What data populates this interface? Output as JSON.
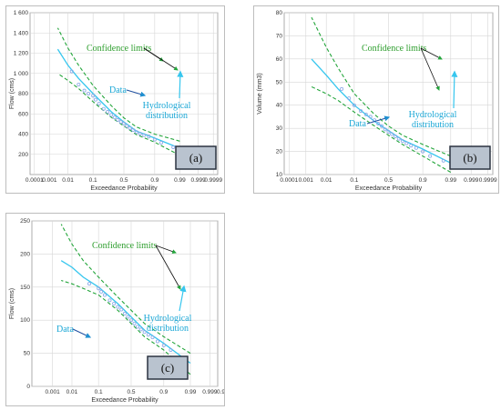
{
  "colors": {
    "confidence": "#22a53a",
    "distribution": "#36c6ee",
    "data_points": "#8aa6e6",
    "grid": "#d6d6d6",
    "label_box": "#b9c3cf"
  },
  "chart_data": [
    {
      "type": "line",
      "panel_label": "(a)",
      "xlabel": "Exceedance Probability",
      "ylabel": "Flow (cms)",
      "x_scale": "normal-probability",
      "x_ticks": [
        "0.9999",
        "0.999",
        "0.99",
        "0.9",
        "0.5",
        "0.1",
        "0.01",
        "0.001",
        "0.0001"
      ],
      "y_ticks": [
        "200",
        "400",
        "600",
        "800",
        "1 000",
        "1 200",
        "1 400",
        "1 600"
      ],
      "ylim": [
        0,
        1600
      ],
      "grid": true,
      "series": [
        {
          "x": [
            0.99,
            0.9,
            0.7,
            0.5,
            0.3,
            0.1,
            0.03,
            0.01,
            0.003
          ],
          "values": [
            260,
            360,
            430,
            520,
            620,
            800,
            950,
            1080,
            1240
          ]
        },
        {
          "x": [
            0.99,
            0.9,
            0.7,
            0.5,
            0.3,
            0.1,
            0.03,
            0.01,
            0.003
          ],
          "values": [
            330,
            400,
            470,
            560,
            680,
            880,
            1080,
            1250,
            1450
          ]
        },
        {
          "x": [
            0.99,
            0.9,
            0.7,
            0.5,
            0.3,
            0.1,
            0.03,
            0.01,
            0.003
          ],
          "values": [
            190,
            320,
            395,
            480,
            565,
            720,
            850,
            930,
            1000
          ]
        },
        {
          "x": [
            0.98,
            0.94,
            0.9,
            0.85,
            0.8,
            0.75,
            0.7,
            0.65,
            0.6,
            0.55,
            0.5,
            0.45,
            0.4,
            0.35,
            0.3,
            0.25,
            0.2,
            0.15,
            0.12,
            0.1,
            0.07,
            0.05,
            0.03,
            0.015
          ],
          "values": [
            270,
            315,
            345,
            375,
            390,
            405,
            420,
            440,
            460,
            480,
            505,
            520,
            540,
            565,
            590,
            620,
            650,
            700,
            740,
            780,
            800,
            830,
            890,
            1020
          ]
        }
      ],
      "annotations": {
        "confidence": "Confidence limits",
        "data": "Data",
        "hydro_1": "Hydrological",
        "hydro_2": "distribution"
      }
    },
    {
      "type": "line",
      "panel_label": "(b)",
      "xlabel": "Exceedance Probability",
      "ylabel": "Volume (mm3)",
      "x_scale": "normal-probability",
      "x_ticks": [
        "0.9999",
        "0.999",
        "0.99",
        "0.9",
        "0.5",
        "0.1",
        "0.01",
        "0.001",
        "0.0001"
      ],
      "y_ticks": [
        "10",
        "20",
        "30",
        "40",
        "50",
        "60",
        "70",
        "80"
      ],
      "ylim": [
        10,
        80
      ],
      "grid": true,
      "series": [
        {
          "x": [
            0.99,
            0.9,
            0.7,
            0.5,
            0.3,
            0.1,
            0.03,
            0.01,
            0.002
          ],
          "values": [
            15,
            21,
            25,
            29,
            33,
            40,
            47,
            53,
            60
          ]
        },
        {
          "x": [
            0.99,
            0.9,
            0.7,
            0.5,
            0.3,
            0.1,
            0.03,
            0.01,
            0.002
          ],
          "values": [
            18,
            23,
            27,
            31,
            36,
            45,
            56,
            65,
            78
          ]
        },
        {
          "x": [
            0.99,
            0.9,
            0.7,
            0.5,
            0.3,
            0.1,
            0.03,
            0.01,
            0.002
          ],
          "values": [
            11,
            18,
            23,
            27,
            31,
            37,
            42,
            45,
            48
          ]
        },
        {
          "x": [
            0.98,
            0.94,
            0.9,
            0.85,
            0.8,
            0.75,
            0.7,
            0.65,
            0.6,
            0.55,
            0.5,
            0.45,
            0.4,
            0.35,
            0.3,
            0.25,
            0.2,
            0.15,
            0.1,
            0.07,
            0.04
          ],
          "values": [
            16,
            18,
            20,
            21.5,
            22.5,
            23.5,
            24.5,
            25.5,
            26.5,
            27.5,
            28.5,
            29.5,
            31,
            32,
            33.5,
            35,
            36,
            37.5,
            40,
            43,
            47
          ]
        }
      ],
      "annotations": {
        "confidence": "Confidence limits",
        "data": "Data",
        "hydro_1": "Hydrological",
        "hydro_2": "distribution"
      }
    },
    {
      "type": "line",
      "panel_label": "(c)",
      "xlabel": "Exceedance Probability",
      "ylabel": "Flow (cms)",
      "x_scale": "normal-probability",
      "x_ticks": [
        "0.9999",
        "0.999",
        "0.99",
        "0.9",
        "0.5",
        "0.1",
        "0.01",
        "0.001"
      ],
      "y_ticks": [
        "0",
        "50",
        "100",
        "150",
        "200",
        "250"
      ],
      "ylim": [
        0,
        250
      ],
      "grid": true,
      "series": [
        {
          "x": [
            0.99,
            0.9,
            0.7,
            0.5,
            0.3,
            0.1,
            0.03,
            0.01,
            0.003
          ],
          "values": [
            35,
            65,
            85,
            105,
            125,
            150,
            165,
            180,
            190
          ]
        },
        {
          "x": [
            0.99,
            0.9,
            0.7,
            0.5,
            0.3,
            0.1,
            0.03,
            0.01,
            0.003
          ],
          "values": [
            50,
            75,
            95,
            115,
            135,
            165,
            190,
            215,
            245
          ]
        },
        {
          "x": [
            0.99,
            0.9,
            0.7,
            0.5,
            0.3,
            0.1,
            0.03,
            0.01,
            0.003
          ],
          "values": [
            18,
            55,
            75,
            95,
            115,
            138,
            148,
            155,
            160
          ]
        },
        {
          "x": [
            0.98,
            0.94,
            0.9,
            0.85,
            0.8,
            0.75,
            0.7,
            0.65,
            0.6,
            0.55,
            0.5,
            0.45,
            0.4,
            0.35,
            0.3,
            0.25,
            0.2,
            0.15,
            0.12,
            0.1,
            0.05
          ],
          "values": [
            40,
            55,
            62,
            68,
            74,
            78,
            82,
            86,
            90,
            95,
            100,
            105,
            110,
            116,
            120,
            125,
            130,
            138,
            143,
            148,
            155
          ]
        }
      ],
      "annotations": {
        "confidence": "Confidence limits",
        "data": "Data",
        "hydro_1": "Hydrological",
        "hydro_2": "distribution"
      }
    }
  ]
}
